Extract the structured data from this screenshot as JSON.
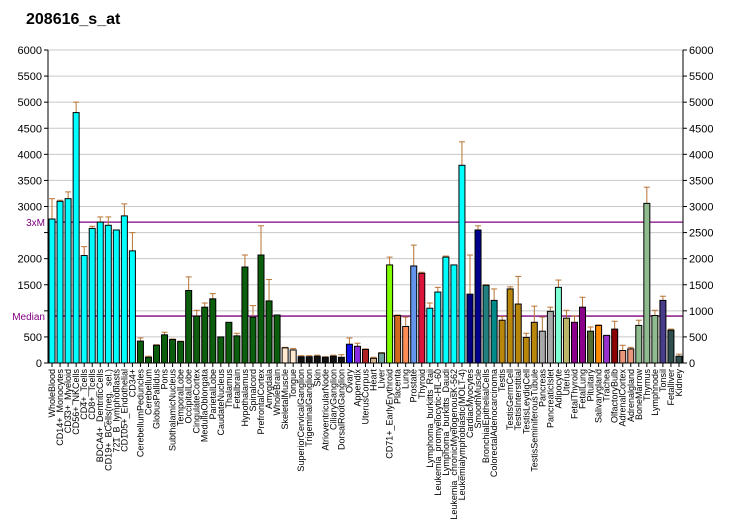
{
  "chart_data": {
    "type": "bar",
    "title": "208616_s_at",
    "xlabel": "",
    "ylabel": "",
    "ylim": [
      0,
      6000
    ],
    "grid": true,
    "yticks": [
      {
        "v": 0,
        "label": "0"
      },
      {
        "v": 500,
        "label": "500"
      },
      {
        "v": 1000,
        "label": ""
      },
      {
        "v": 1500,
        "label": "1500"
      },
      {
        "v": 2000,
        "label": "2000"
      },
      {
        "v": 2500,
        "label": ""
      },
      {
        "v": 3000,
        "label": "3000"
      },
      {
        "v": 3500,
        "label": "3500"
      },
      {
        "v": 4000,
        "label": "4000"
      },
      {
        "v": 4500,
        "label": "4500"
      },
      {
        "v": 5000,
        "label": "5000"
      },
      {
        "v": 5500,
        "label": "5500"
      },
      {
        "v": 6000,
        "label": "6000"
      }
    ],
    "yticks_right": [
      "0",
      "500",
      "1000",
      "1500",
      "2000",
      "2500",
      "3000",
      "3500",
      "4000",
      "4500",
      "5000",
      "5500",
      "6000"
    ],
    "reference_lines": [
      {
        "label": "3xM",
        "value": 2700,
        "color": "#800080"
      },
      {
        "label": "Median",
        "value": 900,
        "color": "#800080"
      }
    ],
    "error_color": "#B87333",
    "categories": [
      "WholeBlood",
      "CD14+_Monocytes",
      "CD33+_Myeloid",
      "CD56+_NKCells",
      "CD4+_Tcells",
      "CD8+_Tcells",
      "BDCA4+_DentriticCells",
      "CD19+_BCells(neg._sel.)",
      "721_B_lymphoblasts",
      "CD105+_Endothelial",
      "CD34+",
      "CerebellumPeduncles",
      "Cerebellum",
      "GlobusPallidus",
      "Pons",
      "SubthalamicNucleus",
      "TemporalLobe",
      "OccipitalLobe",
      "CingulateCortex",
      "MedullaOblongata",
      "ParietalLobe",
      "CaudateNucleus",
      "Thalamus",
      "Fetalbrain",
      "Hypothalamus",
      "Spinalcord",
      "PrefrontalCortex",
      "Amygdala",
      "WholeBrain",
      "SkeletalMuscle",
      "Tongue",
      "SuperiorCervicalGanglion",
      "TrigeminalGanglion",
      "Skin",
      "AtrioventricularNode",
      "CiliaryGanglion",
      "DorsalRootGanglion",
      "Ovary",
      "Appendix",
      "UterusCorpus",
      "Heart",
      "Liver",
      "CD71+_EarlyErythroid",
      "Placenta",
      "Lung",
      "Prostate",
      "Thyroid",
      "Lymphoma_burkitts_Raji",
      "Leukemia_promyelocytic-HL-60",
      "Lymphoma_burkitts_Daudi",
      "Leukemia_chronicMyelogenousK-562",
      "Leukemialymphoblastic(MOLT-4)",
      "CardiacMyocytes",
      "SmoothMuscle",
      "BronchialEpithelialCells",
      "ColorectalAdenocarcinoma",
      "Testis",
      "TestisGermCell",
      "TestisInterstitial",
      "TestisLeydigCell",
      "TestisSeminiferousTubule",
      "Pancreas",
      "PancreaticIslet",
      "Adipocyte",
      "Uterus",
      "FetalThyroid",
      "FetalLung",
      "Pituitary",
      "Salivarygland",
      "Trachea",
      "OlfactoryBulb",
      "AdrenalCortex",
      "Adrenalgland",
      "BoneMarrow",
      "Thymus",
      "Lymphnode",
      "Tonsil",
      "Fetalliver",
      "Kidney"
    ],
    "values": [
      2760,
      3100,
      3150,
      4800,
      2060,
      2580,
      2700,
      2640,
      2550,
      2820,
      2150,
      420,
      110,
      340,
      540,
      450,
      410,
      1390,
      900,
      1070,
      1230,
      500,
      780,
      520,
      1840,
      880,
      2070,
      1190,
      920,
      290,
      250,
      120,
      120,
      130,
      110,
      130,
      110,
      360,
      320,
      260,
      90,
      190,
      1880,
      910,
      700,
      1860,
      1720,
      1050,
      1360,
      2030,
      1880,
      3790,
      1320,
      2550,
      1490,
      1200,
      820,
      1420,
      1130,
      490,
      780,
      610,
      990,
      1450,
      860,
      780,
      1070,
      610,
      720,
      530,
      650,
      240,
      270,
      720,
      3060,
      910,
      1200,
      630,
      130
    ],
    "error_upper": [
      3150,
      3120,
      3280,
      5000,
      2230,
      2620,
      2800,
      2800,
      2550,
      3050,
      2500,
      480,
      130,
      350,
      590,
      460,
      420,
      1650,
      1010,
      1150,
      1330,
      500,
      780,
      570,
      2070,
      1100,
      2630,
      1600,
      920,
      300,
      280,
      140,
      140,
      150,
      120,
      150,
      160,
      480,
      380,
      270,
      110,
      200,
      2030,
      920,
      880,
      2260,
      1740,
      1150,
      1450,
      2050,
      1880,
      4240,
      2070,
      2630,
      1500,
      1420,
      890,
      1460,
      1660,
      570,
      1090,
      880,
      1070,
      1590,
      1010,
      900,
      1260,
      690,
      730,
      530,
      800,
      340,
      300,
      820,
      3370,
      1010,
      1280,
      650,
      170
    ],
    "colors": [
      "#00FFFF",
      "#00FFFF",
      "#00FFFF",
      "#00FFFF",
      "#00FFFF",
      "#00FFFF",
      "#00FFFF",
      "#00FFFF",
      "#00FFFF",
      "#00FFFF",
      "#00FFFF",
      "#0B5E0B",
      "#0B5E0B",
      "#0B5E0B",
      "#0B5E0B",
      "#0B5E0B",
      "#0B5E0B",
      "#0B5E0B",
      "#0B5E0B",
      "#0B5E0B",
      "#0B5E0B",
      "#0B5E0B",
      "#0B5E0B",
      "#0B5E0B",
      "#0B5E0B",
      "#0B5E0B",
      "#0B5E0B",
      "#0B5E0B",
      "#0B5E0B",
      "#FFE8D0",
      "#FFE8D0",
      "#111111",
      "#111111",
      "#111111",
      "#111111",
      "#111111",
      "#111111",
      "#1010F0",
      "#8A2BE2",
      "#B22222",
      "#D2B48C",
      "#6E9E9E",
      "#80FF00",
      "#D2691E",
      "#FF8C55",
      "#6495ED",
      "#DC143C",
      "#00FFFF",
      "#00FFFF",
      "#00FFFF",
      "#00FFFF",
      "#00FFFF",
      "#000080",
      "#00008B",
      "#208080",
      "#008B8B",
      "#B8860B",
      "#B8860B",
      "#B8860B",
      "#B8860B",
      "#B8860B",
      "#A9A9A9",
      "#A9A9A9",
      "#7FFFD4",
      "#BDB76B",
      "#8B008B",
      "#8B008B",
      "#556B2F",
      "#FF8C00",
      "#9932CC",
      "#8B0000",
      "#E9967A",
      "#E9967A",
      "#8FBC8F",
      "#8FBC8F",
      "#8FBC8F",
      "#483D8B",
      "#2F4F4F",
      "#2F4F4F"
    ]
  }
}
